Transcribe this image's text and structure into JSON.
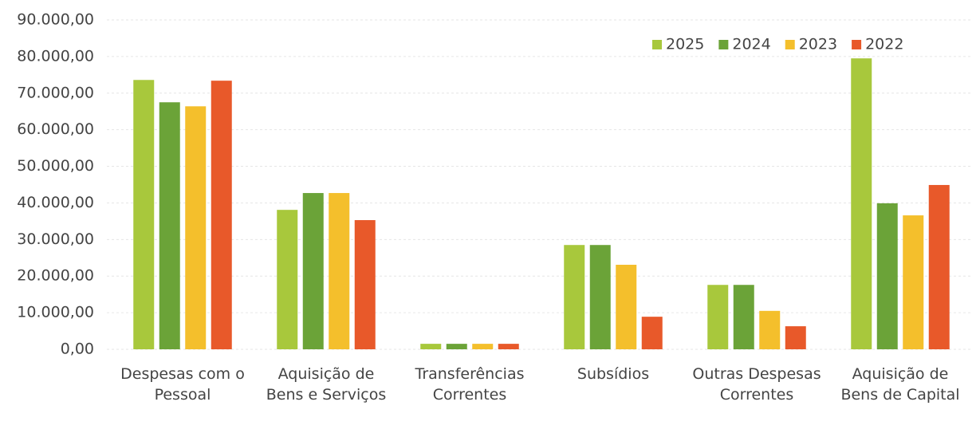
{
  "chart_data": {
    "type": "bar",
    "categories": [
      "Despesas com o\nPessoal",
      "Aquisição de\nBens e Serviços",
      "Transferências\nCorrentes",
      "Subsídios",
      "Outras Despesas\nCorrentes",
      "Aquisição de\nBens de Capital"
    ],
    "series": [
      {
        "name": "2025",
        "color": "#a8c83c",
        "values": [
          73600,
          38100,
          1500,
          28500,
          17600,
          79500
        ]
      },
      {
        "name": "2024",
        "color": "#6ba338",
        "values": [
          67500,
          42700,
          1500,
          28500,
          17600,
          39900
        ]
      },
      {
        "name": "2023",
        "color": "#f4bf2c",
        "values": [
          66400,
          42700,
          1500,
          23100,
          10500,
          36600
        ]
      },
      {
        "name": "2022",
        "color": "#e8592a",
        "values": [
          73400,
          35300,
          1500,
          8900,
          6300,
          44900
        ]
      }
    ],
    "ylim": [
      0,
      90000
    ],
    "yticks": [
      {
        "value": 0,
        "label": "0,00"
      },
      {
        "value": 10000,
        "label": "10.000,00"
      },
      {
        "value": 20000,
        "label": "20.000,00"
      },
      {
        "value": 30000,
        "label": "30.000,00"
      },
      {
        "value": 40000,
        "label": "40.000,00"
      },
      {
        "value": 50000,
        "label": "50.000,00"
      },
      {
        "value": 60000,
        "label": "60.000,00"
      },
      {
        "value": 70000,
        "label": "70.000,00"
      },
      {
        "value": 80000,
        "label": "80.000,00"
      },
      {
        "value": 90000,
        "label": "90.000,00"
      }
    ],
    "grid": true,
    "legend": "top-right"
  }
}
